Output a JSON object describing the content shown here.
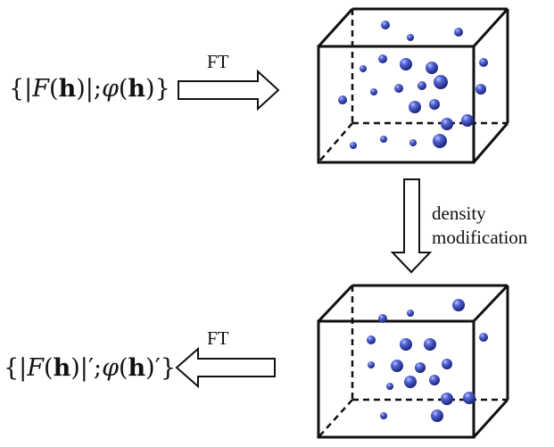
{
  "top_formula": {
    "open": "{|",
    "F": "F",
    "paren_open": "(",
    "h": "h",
    "mid": ")|;",
    "phi": "φ",
    "close": ")}"
  },
  "bottom_formula": {
    "open": "{|",
    "F": "F",
    "paren_open": "(",
    "h": "h",
    "mid": ")|′;",
    "phi": "φ",
    "close": ")′}"
  },
  "top_arrow_label": "FT",
  "bottom_arrow_label": "FT",
  "vertical_arrow_label_line1": "density",
  "vertical_arrow_label_line2": "modification",
  "colors": {
    "stroke": "#111111",
    "atom": "#3a49a8"
  }
}
